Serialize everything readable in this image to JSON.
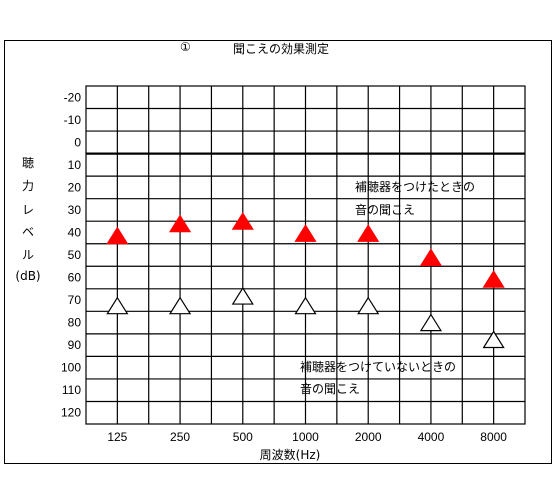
{
  "chart_data": {
    "type": "scatter",
    "title_marker": "①",
    "title": "聞こえの効果測定",
    "ylabel": [
      "聴",
      "力",
      "レ",
      "ベ",
      "ル",
      "(dB)"
    ],
    "xlabel": "周波数(Hz)",
    "x_categories": [
      "125",
      "250",
      "500",
      "1000",
      "2000",
      "4000",
      "8000"
    ],
    "y_ticks": [
      -20,
      -10,
      0,
      10,
      20,
      30,
      40,
      50,
      60,
      70,
      80,
      90,
      100,
      110,
      120
    ],
    "y_range": [
      -20,
      120
    ],
    "y_reversed": true,
    "series": [
      {
        "label_line1": "補聴器をつけたときの",
        "label_line2": "音の聞こえ",
        "marker": "triangle-filled",
        "color": "#ff0000",
        "values": [
          42,
          37,
          36,
          41,
          41,
          51,
          60
        ]
      },
      {
        "label_line1": "補聴器をつけていないときの",
        "label_line2": "音の聞こえ",
        "marker": "triangle-open",
        "color": "#000000",
        "values": [
          71,
          71,
          67,
          71,
          71,
          78,
          85
        ]
      }
    ]
  }
}
